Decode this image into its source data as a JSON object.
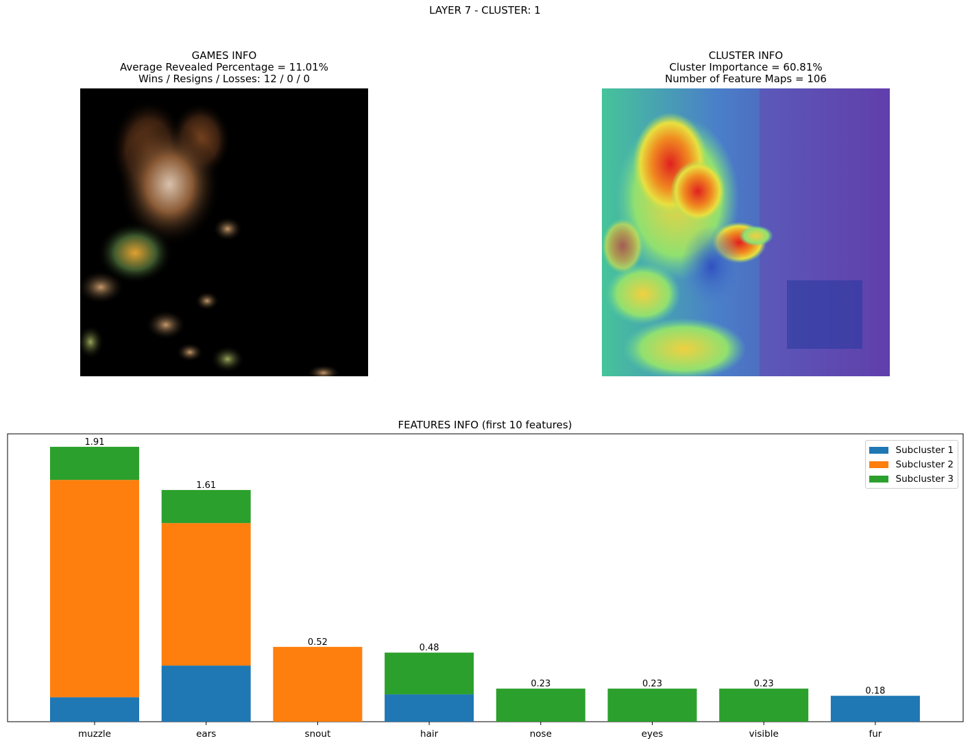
{
  "suptitle": "LAYER 7 - CLUSTER: 1",
  "games_info": {
    "heading": "GAMES INFO",
    "line1": "Average Revealed Percentage = 11.01%",
    "line2": "Wins / Resigns / Losses: 12 / 0 / 0"
  },
  "cluster_info": {
    "heading": "CLUSTER INFO",
    "line1": "Cluster Importance = 60.81%",
    "line2": "Number of Feature Maps = 106"
  },
  "images": {
    "left": "masked-dog-image",
    "right": "heatmap-dog-image"
  },
  "chart_data": {
    "type": "bar",
    "stacked": true,
    "title": "FEATURES INFO (first 10 features)",
    "categories": [
      "muzzle",
      "ears",
      "snout",
      "hair",
      "nose",
      "eyes",
      "visible",
      "fur"
    ],
    "series": [
      {
        "name": "Subcluster 1",
        "color": "#1f77b4",
        "values": [
          0.17,
          0.39,
          0,
          0.19,
          0,
          0,
          0,
          0.18
        ]
      },
      {
        "name": "Subcluster 2",
        "color": "#ff7f0e",
        "values": [
          1.51,
          0.99,
          0.52,
          0,
          0,
          0,
          0,
          0
        ]
      },
      {
        "name": "Subcluster 3",
        "color": "#2ca02c",
        "values": [
          0.23,
          0.23,
          0,
          0.29,
          0.23,
          0.23,
          0.23,
          0
        ]
      }
    ],
    "totals": [
      1.91,
      1.61,
      0.52,
      0.48,
      0.23,
      0.23,
      0.23,
      0.18
    ],
    "total_labels": [
      "1.91",
      "1.61",
      "0.52",
      "0.48",
      "0.23",
      "0.23",
      "0.23",
      "0.18"
    ],
    "ylim": [
      0,
      2.0
    ],
    "yticks_visible": false,
    "grid": false,
    "legend_position": "upper-right"
  }
}
